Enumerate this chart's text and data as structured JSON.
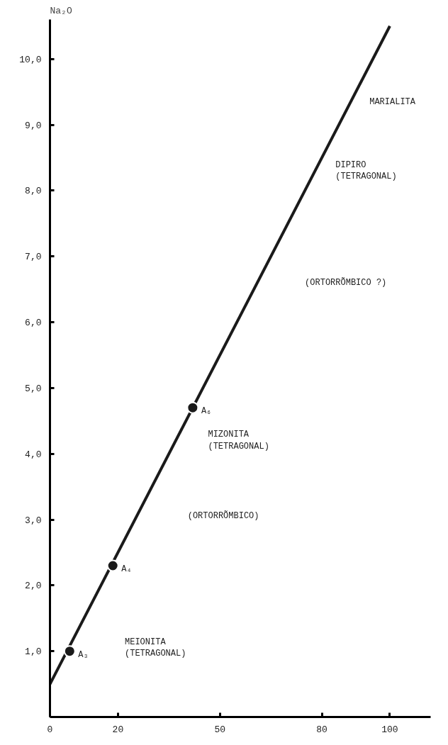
{
  "chart_data": {
    "type": "line",
    "ylabel": "Na₂O",
    "xlim": [
      0,
      112
    ],
    "ylim": [
      0,
      10.6
    ],
    "xticks": [
      0,
      20,
      50,
      80,
      100
    ],
    "yticks": [
      {
        "value": 1,
        "label": "1,0"
      },
      {
        "value": 2,
        "label": "2,0"
      },
      {
        "value": 3,
        "label": "3,0"
      },
      {
        "value": 4,
        "label": "4,0"
      },
      {
        "value": 5,
        "label": "5,0"
      },
      {
        "value": 6,
        "label": "6,0"
      },
      {
        "value": 7,
        "label": "7,0"
      },
      {
        "value": 8,
        "label": "8,0"
      },
      {
        "value": 9,
        "label": "9,0"
      },
      {
        "value": 10,
        "label": "10,0"
      }
    ],
    "grid": false,
    "series": [
      {
        "x": [
          0,
          100
        ],
        "values": [
          0.5,
          10.5
        ],
        "color": "#1a1a1a",
        "line_style": "solid"
      },
      {
        "type": "scatter",
        "x": [
          5.8,
          18.5,
          42
        ],
        "values": [
          1.0,
          2.3,
          4.7
        ],
        "color": "#1a1a1a",
        "marker": "circle",
        "value_labels": [
          "A₃",
          "A₄",
          "A₆"
        ]
      }
    ],
    "annotations": [
      "MARIALITA",
      "DIPIRO\n(TETRAGONAL)",
      "(ORTORRÕMBICO ?)",
      "MIZONITA\n(TETRAGONAL)",
      "(ORTORRÕMBICO)",
      "MEIONITA\n(TETRAGONAL)"
    ]
  }
}
